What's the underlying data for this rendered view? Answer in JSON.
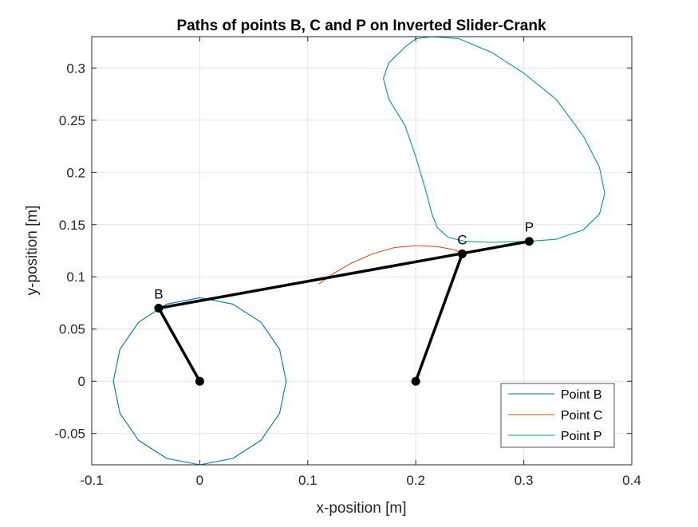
{
  "chart_data": {
    "type": "line",
    "title": "Paths of points B, C and P on Inverted Slider-Crank",
    "xlabel": "x-position [m]",
    "ylabel": "y-position [m]",
    "xlim": [
      -0.1,
      0.4
    ],
    "ylim": [
      -0.08,
      0.33
    ],
    "x_ticks": [
      -0.1,
      0,
      0.1,
      0.2,
      0.3,
      0.4
    ],
    "x_tick_labels": [
      "-0.1",
      "0",
      "0.1",
      "0.2",
      "0.3",
      "0.4"
    ],
    "y_ticks": [
      -0.05,
      0,
      0.05,
      0.1,
      0.15,
      0.2,
      0.25,
      0.3
    ],
    "y_tick_labels": [
      "-0.05",
      "0",
      "0.05",
      "0.1",
      "0.15",
      "0.2",
      "0.25",
      "0.3"
    ],
    "grid": true,
    "legend_position": "bottom-right",
    "series": [
      {
        "name": "Point B",
        "color": "#0072BD",
        "x": [
          0.08,
          0.0739,
          0.0566,
          0.0306,
          0.0,
          -0.0306,
          -0.0566,
          -0.0739,
          -0.08,
          -0.0739,
          -0.0566,
          -0.0306,
          0.0,
          0.0306,
          0.0566,
          0.0739,
          0.08
        ],
        "y": [
          0.0,
          0.0306,
          0.0566,
          0.0739,
          0.08,
          0.0739,
          0.0566,
          0.0306,
          0.0,
          -0.0306,
          -0.0566,
          -0.0739,
          -0.08,
          -0.0739,
          -0.0566,
          -0.0306,
          0.0
        ]
      },
      {
        "name": "Point C",
        "color": "#D95319",
        "x": [
          0.11,
          0.125,
          0.14,
          0.16,
          0.18,
          0.2,
          0.22,
          0.235,
          0.245
        ],
        "y": [
          0.093,
          0.104,
          0.113,
          0.122,
          0.128,
          0.13,
          0.129,
          0.126,
          0.122
        ]
      },
      {
        "name": "Point P",
        "color": "#009E73",
        "x": [
          0.305,
          0.33,
          0.355,
          0.37,
          0.375,
          0.37,
          0.355,
          0.33,
          0.3,
          0.27,
          0.24,
          0.215,
          0.2,
          0.19,
          0.175,
          0.17,
          0.175,
          0.19,
          0.2,
          0.21,
          0.215,
          0.22,
          0.23,
          0.245,
          0.27,
          0.305
        ],
        "y": [
          0.134,
          0.136,
          0.145,
          0.16,
          0.18,
          0.205,
          0.235,
          0.27,
          0.295,
          0.315,
          0.328,
          0.33,
          0.328,
          0.32,
          0.305,
          0.29,
          0.27,
          0.245,
          0.215,
          0.18,
          0.16,
          0.147,
          0.138,
          0.134,
          0.133,
          0.134
        ]
      }
    ],
    "linkages": [
      {
        "name": "crank",
        "x": [
          0,
          -0.038
        ],
        "y": [
          0,
          0.07
        ]
      },
      {
        "name": "coupler",
        "x": [
          -0.038,
          0.305
        ],
        "y": [
          0.07,
          0.134
        ]
      },
      {
        "name": "rocker",
        "x": [
          0.2,
          0.243
        ],
        "y": [
          0,
          0.122
        ]
      }
    ],
    "joints": [
      {
        "label": "",
        "x": 0,
        "y": 0
      },
      {
        "label": "B",
        "x": -0.038,
        "y": 0.07
      },
      {
        "label": "",
        "x": 0.2,
        "y": 0
      },
      {
        "label": "C",
        "x": 0.243,
        "y": 0.122
      },
      {
        "label": "P",
        "x": 0.305,
        "y": 0.134
      }
    ]
  }
}
